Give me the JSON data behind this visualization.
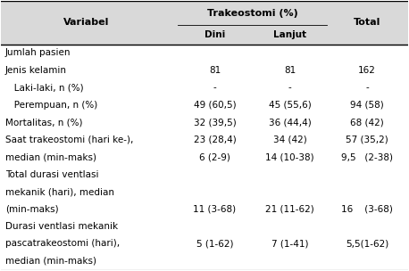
{
  "title_header": "Trakeostomi (%)",
  "col_headers": [
    "Variabel",
    "Dini",
    "Lanjut",
    "Total"
  ],
  "header_bg": "#d9d9d9",
  "rows": [
    [
      "Jumlah pasien",
      "",
      "",
      ""
    ],
    [
      "Jenis kelamin",
      "81",
      "81",
      "162"
    ],
    [
      "   Laki-laki, n (%)",
      "-",
      "-",
      "-"
    ],
    [
      "   Perempuan, n (%)",
      "49 (60,5)",
      "45 (55,6)",
      "94 (58)"
    ],
    [
      "Mortalitas, n (%)",
      "32 (39,5)",
      "36 (44,4)",
      "68 (42)"
    ],
    [
      "Saat trakeostomi (hari ke-),",
      "23 (28,4)",
      "34 (42)",
      "57 (35,2)"
    ],
    [
      "median (min-maks)",
      "6 (2-9)",
      "14 (10-38)",
      "9,5   (2-38)"
    ],
    [
      "Total durasi ventlasi",
      "",
      "",
      ""
    ],
    [
      "mekanik (hari), median",
      "",
      "",
      ""
    ],
    [
      "(min-maks)",
      "11 (3-68)",
      "21 (11-62)",
      "16    (3-68)"
    ],
    [
      "Durasi ventlasi mekanik",
      "",
      "",
      ""
    ],
    [
      "pascatrakeostomi (hari),",
      "5 (1-62)",
      "7 (1-41)",
      "5,5(1-62)"
    ],
    [
      "median (min-maks)",
      "",
      "",
      ""
    ]
  ],
  "bg_color": "#ffffff",
  "font_size": 7.5,
  "header_font_size": 8.0
}
